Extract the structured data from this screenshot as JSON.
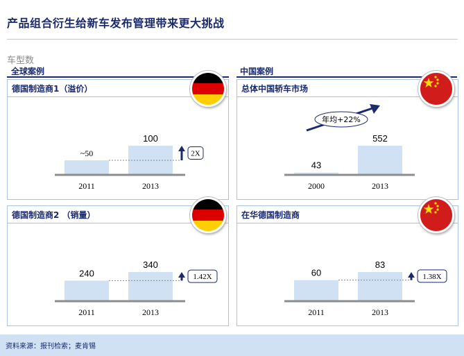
{
  "page": {
    "title": "产品组合衍生给新车发布管理带来更大挑战",
    "unit": "车型数",
    "section_left": "全球案例",
    "section_right": "中国案例",
    "footer": "资料来源：报刊检索；麦肯锡"
  },
  "colors": {
    "bar": "#cfe1f3",
    "navy": "#1a2a6c",
    "panel": "#cfe1f3"
  },
  "panels": [
    {
      "title": "德国制造商1（溢价）",
      "flag": "germany-flag-icon",
      "growth": "2X",
      "growth_type": "box",
      "value_labels": [
        "~50",
        "100"
      ]
    },
    {
      "title": "总体中国轿车市场",
      "flag": "china-flag-icon",
      "growth": "年均+22%",
      "growth_type": "arrow-oval",
      "value_labels": [
        "43",
        "552"
      ]
    },
    {
      "title": "德国制造商2 （销量）",
      "flag": "germany-flag-icon",
      "growth": "1.42X",
      "growth_type": "box",
      "value_labels": [
        "240",
        "340"
      ]
    },
    {
      "title": "在华德国制造商",
      "flag": "china-flag-icon",
      "growth": "1.38X",
      "growth_type": "box",
      "value_labels": [
        "60",
        "83"
      ]
    }
  ],
  "chart_data": [
    {
      "type": "bar",
      "title": "德国制造商1（溢价）",
      "categories": [
        "2011",
        "2013"
      ],
      "values": [
        50,
        100
      ]
    },
    {
      "type": "bar",
      "title": "总体中国轿车市场",
      "categories": [
        "2000",
        "2013"
      ],
      "values": [
        43,
        552
      ]
    },
    {
      "type": "bar",
      "title": "德国制造商2 （销量）",
      "categories": [
        "2011",
        "2013"
      ],
      "values": [
        240,
        340
      ]
    },
    {
      "type": "bar",
      "title": "在华德国制造商",
      "categories": [
        "2011",
        "2013"
      ],
      "values": [
        60,
        83
      ]
    }
  ]
}
